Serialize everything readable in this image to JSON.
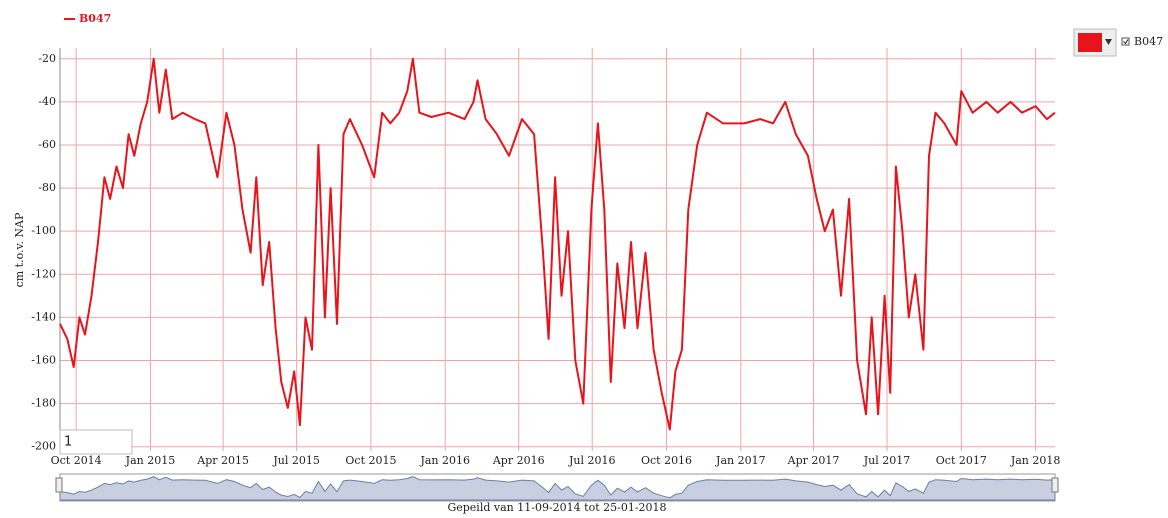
{
  "chart_data": {
    "type": "line",
    "y_label": "cm t.o.v. NAP",
    "caption": "Gepeild van 11-09-2014 tot 25-01-2018",
    "input_value": "1",
    "x": [
      "2014-09-11",
      "2014-09-20",
      "2014-09-28",
      "2014-10-05",
      "2014-10-12",
      "2014-10-20",
      "2014-10-28",
      "2014-11-05",
      "2014-11-12",
      "2014-11-20",
      "2014-11-28",
      "2014-12-05",
      "2014-12-12",
      "2014-12-20",
      "2014-12-28",
      "2015-01-05",
      "2015-01-12",
      "2015-01-20",
      "2015-01-28",
      "2015-02-10",
      "2015-02-25",
      "2015-03-10",
      "2015-03-25",
      "2015-04-05",
      "2015-04-15",
      "2015-04-25",
      "2015-05-05",
      "2015-05-12",
      "2015-05-20",
      "2015-05-28",
      "2015-06-05",
      "2015-06-12",
      "2015-06-20",
      "2015-06-28",
      "2015-07-05",
      "2015-07-12",
      "2015-07-20",
      "2015-07-28",
      "2015-08-05",
      "2015-08-12",
      "2015-08-20",
      "2015-08-28",
      "2015-09-05",
      "2015-09-20",
      "2015-10-05",
      "2015-10-15",
      "2015-10-25",
      "2015-11-05",
      "2015-11-15",
      "2015-11-22",
      "2015-11-30",
      "2015-12-15",
      "2016-01-05",
      "2016-01-25",
      "2016-02-05",
      "2016-02-10",
      "2016-02-20",
      "2016-03-05",
      "2016-03-20",
      "2016-04-05",
      "2016-04-20",
      "2016-05-01",
      "2016-05-08",
      "2016-05-16",
      "2016-05-24",
      "2016-06-01",
      "2016-06-10",
      "2016-06-20",
      "2016-06-30",
      "2016-07-08",
      "2016-07-16",
      "2016-07-24",
      "2016-08-01",
      "2016-08-10",
      "2016-08-18",
      "2016-08-26",
      "2016-09-05",
      "2016-09-15",
      "2016-09-25",
      "2016-10-05",
      "2016-10-12",
      "2016-10-20",
      "2016-10-28",
      "2016-11-08",
      "2016-11-20",
      "2016-12-10",
      "2017-01-05",
      "2017-01-25",
      "2017-02-10",
      "2017-02-25",
      "2017-03-10",
      "2017-03-25",
      "2017-04-05",
      "2017-04-15",
      "2017-04-25",
      "2017-05-05",
      "2017-05-15",
      "2017-05-25",
      "2017-06-05",
      "2017-06-12",
      "2017-06-20",
      "2017-06-28",
      "2017-07-05",
      "2017-07-12",
      "2017-07-20",
      "2017-07-28",
      "2017-08-05",
      "2017-08-15",
      "2017-08-22",
      "2017-08-30",
      "2017-09-10",
      "2017-09-25",
      "2017-10-01",
      "2017-10-15",
      "2017-11-01",
      "2017-11-15",
      "2017-12-01",
      "2017-12-15",
      "2018-01-01",
      "2018-01-15",
      "2018-01-25"
    ],
    "series": [
      {
        "name": "B047",
        "color": "#e8141c",
        "values": [
          -143,
          -150,
          -163,
          -140,
          -148,
          -130,
          -105,
          -75,
          -85,
          -70,
          -80,
          -55,
          -65,
          -50,
          -40,
          -20,
          -45,
          -25,
          -48,
          -45,
          -48,
          -50,
          -75,
          -45,
          -60,
          -90,
          -110,
          -75,
          -125,
          -105,
          -145,
          -170,
          -182,
          -165,
          -190,
          -140,
          -155,
          -60,
          -140,
          -80,
          -143,
          -55,
          -48,
          -60,
          -75,
          -45,
          -50,
          -45,
          -35,
          -20,
          -45,
          -47,
          -45,
          -48,
          -40,
          -30,
          -48,
          -55,
          -65,
          -48,
          -55,
          -110,
          -150,
          -75,
          -130,
          -100,
          -160,
          -180,
          -90,
          -50,
          -90,
          -170,
          -115,
          -145,
          -105,
          -145,
          -110,
          -155,
          -175,
          -192,
          -165,
          -155,
          -90,
          -60,
          -45,
          -50,
          -50,
          -48,
          -50,
          -40,
          -55,
          -65,
          -85,
          -100,
          -90,
          -130,
          -85,
          -160,
          -185,
          -140,
          -185,
          -130,
          -175,
          -70,
          -100,
          -140,
          -120,
          -155,
          -65,
          -45,
          -50,
          -60,
          -35,
          -45,
          -40,
          -45,
          -40,
          -45,
          -42,
          -48,
          -45
        ]
      }
    ],
    "xlim": [
      "2014-09-11",
      "2018-01-25"
    ],
    "xticks": [
      {
        "value": "2014-10-01",
        "label": "Oct 2014"
      },
      {
        "value": "2015-01-01",
        "label": "Jan 2015"
      },
      {
        "value": "2015-04-01",
        "label": "Apr 2015"
      },
      {
        "value": "2015-07-01",
        "label": "Jul 2015"
      },
      {
        "value": "2015-10-01",
        "label": "Oct 2015"
      },
      {
        "value": "2016-01-01",
        "label": "Jan 2016"
      },
      {
        "value": "2016-04-01",
        "label": "Apr 2016"
      },
      {
        "value": "2016-07-01",
        "label": "Jul 2016"
      },
      {
        "value": "2016-10-01",
        "label": "Oct 2016"
      },
      {
        "value": "2017-01-01",
        "label": "Jan 2017"
      },
      {
        "value": "2017-04-01",
        "label": "Apr 2017"
      },
      {
        "value": "2017-07-01",
        "label": "Jul 2017"
      },
      {
        "value": "2017-10-01",
        "label": "Oct 2017"
      },
      {
        "value": "2018-01-01",
        "label": "Jan 2018"
      }
    ],
    "ylim": [
      -202,
      -15
    ],
    "yticks": [
      -200,
      -180,
      -160,
      -140,
      -120,
      -100,
      -80,
      -60,
      -40,
      -20
    ],
    "grid": true,
    "grid_color": "#f2a5a8"
  }
}
